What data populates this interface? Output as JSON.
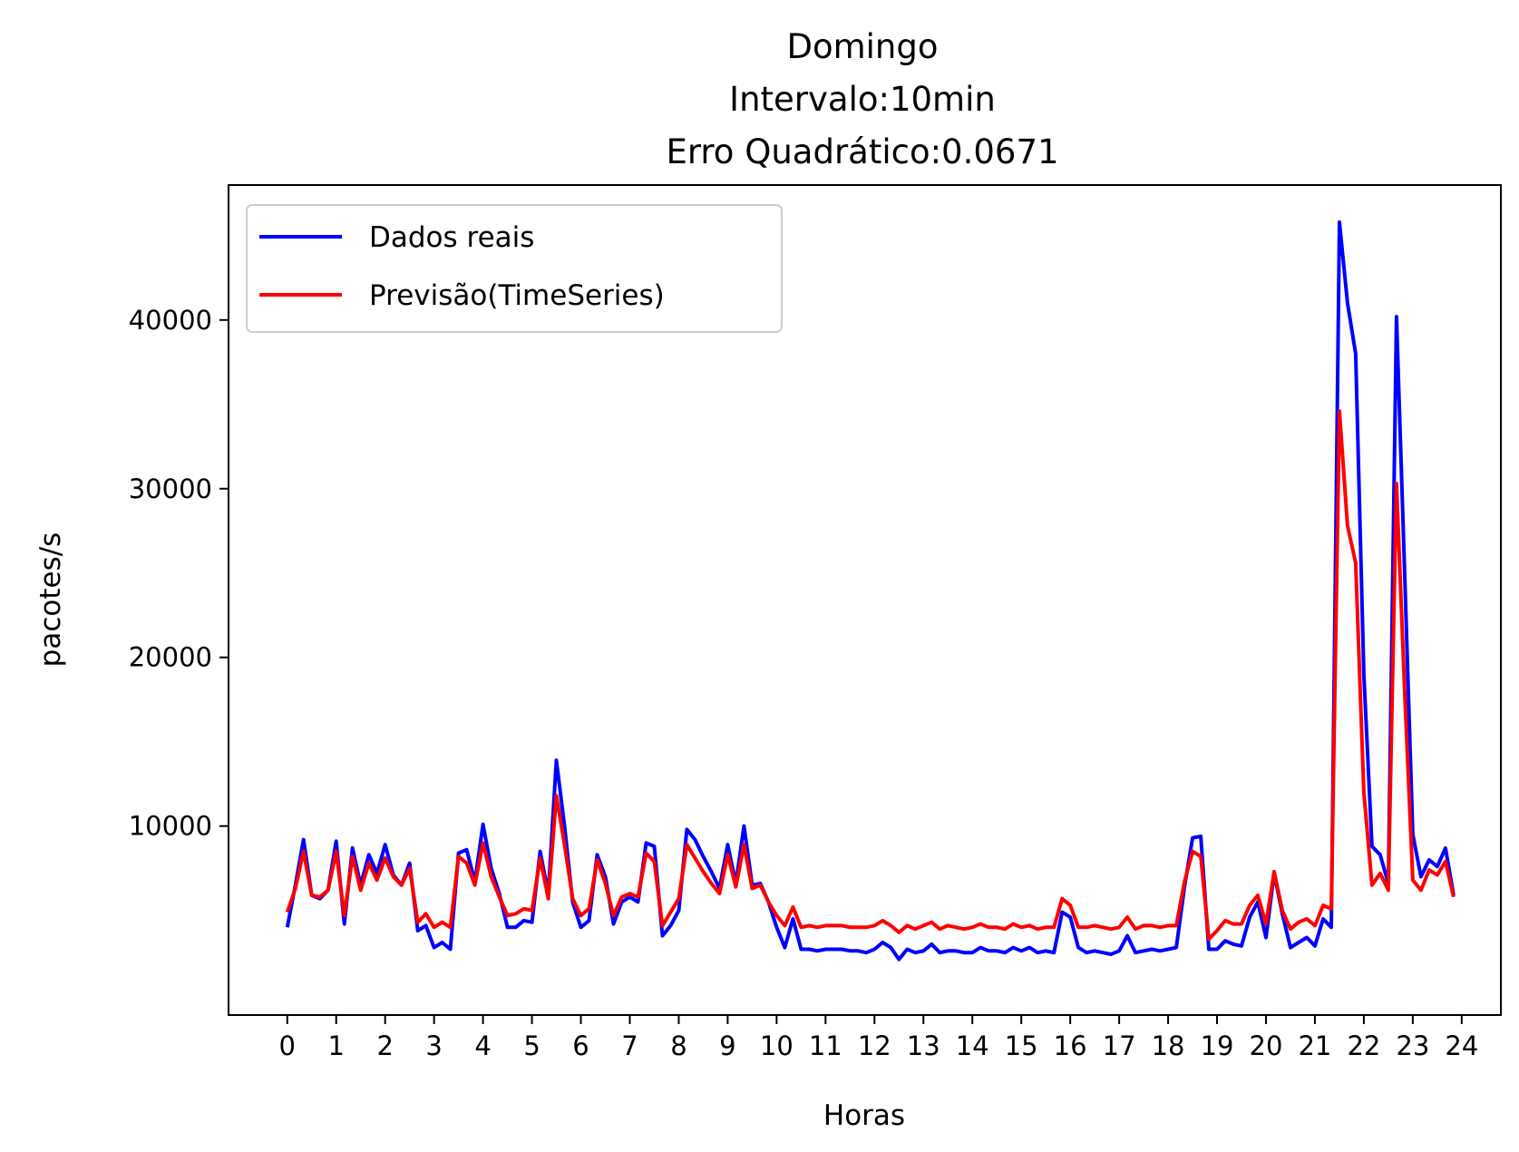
{
  "chart_data": {
    "type": "line",
    "title_lines": [
      "Domingo",
      "Intervalo:10min",
      "Erro Quadrático:0.0671"
    ],
    "xlabel": "Horas",
    "ylabel": "pacotes/s",
    "xlim": [
      -1.2,
      24.8
    ],
    "ylim": [
      -1200,
      48000
    ],
    "x_ticks": [
      0,
      1,
      2,
      3,
      4,
      5,
      6,
      7,
      8,
      9,
      10,
      11,
      12,
      13,
      14,
      15,
      16,
      17,
      18,
      19,
      20,
      21,
      22,
      23,
      24
    ],
    "x_tick_labels": [
      "0",
      "1",
      "2",
      "3",
      "4",
      "5",
      "6",
      "7",
      "8",
      "9",
      "10",
      "11",
      "12",
      "13",
      "14",
      "15",
      "16",
      "17",
      "18",
      "19",
      "20",
      "21",
      "22",
      "23",
      "24"
    ],
    "y_ticks": [
      10000,
      20000,
      30000,
      40000
    ],
    "y_tick_labels": [
      "10000",
      "20000",
      "30000",
      "40000"
    ],
    "grid": false,
    "legend_position": "top-left",
    "x_step_hours": 0.16667,
    "series": [
      {
        "name": "Dados reais",
        "color": "#0000ff",
        "values": [
          4000,
          6500,
          9200,
          5900,
          5700,
          6200,
          9100,
          4200,
          8700,
          6500,
          8300,
          7200,
          8900,
          7100,
          6500,
          7800,
          3800,
          4100,
          2800,
          3100,
          2700,
          8400,
          8600,
          6700,
          10100,
          7500,
          6000,
          4000,
          4000,
          4400,
          4300,
          8500,
          6000,
          13900,
          10000,
          5500,
          4000,
          4400,
          8300,
          7000,
          4200,
          5500,
          5800,
          5500,
          9000,
          8800,
          3500,
          4100,
          5000,
          9800,
          9200,
          8200,
          7300,
          6300,
          8900,
          6600,
          10000,
          6500,
          6600,
          5500,
          4000,
          2800,
          4500,
          2700,
          2700,
          2600,
          2700,
          2700,
          2700,
          2600,
          2600,
          2500,
          2700,
          3100,
          2800,
          2100,
          2700,
          2500,
          2600,
          3000,
          2500,
          2600,
          2600,
          2500,
          2500,
          2800,
          2600,
          2600,
          2500,
          2800,
          2600,
          2800,
          2500,
          2600,
          2500,
          4900,
          4600,
          2800,
          2500,
          2600,
          2500,
          2400,
          2600,
          3500,
          2500,
          2600,
          2700,
          2600,
          2700,
          2800,
          6400,
          9300,
          9400,
          2700,
          2700,
          3200,
          3000,
          2900,
          4600,
          5500,
          3400,
          7200,
          4800,
          2800,
          3100,
          3400,
          2900,
          4500,
          4000,
          45800,
          41000,
          38000,
          19000,
          8800,
          8300,
          6600,
          40200,
          25000,
          9500,
          7000,
          8000,
          7600,
          8700,
          5900
        ],
        "x_start": 0
      },
      {
        "name": "Previsão(TimeSeries)",
        "color": "#ff0000",
        "values": [
          4900,
          6300,
          8500,
          5900,
          5800,
          6200,
          8500,
          4700,
          8200,
          6200,
          7800,
          6800,
          8100,
          7000,
          6500,
          7500,
          4300,
          4800,
          4000,
          4300,
          4000,
          8200,
          7800,
          6500,
          9000,
          7000,
          5800,
          4700,
          4800,
          5100,
          5000,
          8100,
          5700,
          11800,
          8900,
          5700,
          4700,
          5100,
          8000,
          6600,
          4700,
          5800,
          6000,
          5800,
          8400,
          7900,
          4100,
          4900,
          5700,
          8900,
          8100,
          7300,
          6600,
          6000,
          8300,
          6400,
          8900,
          6300,
          6500,
          5500,
          4700,
          4100,
          5200,
          4000,
          4100,
          4000,
          4100,
          4100,
          4100,
          4000,
          4000,
          4000,
          4100,
          4400,
          4100,
          3700,
          4100,
          3900,
          4100,
          4300,
          3900,
          4100,
          4000,
          3900,
          4000,
          4200,
          4000,
          4000,
          3900,
          4200,
          4000,
          4100,
          3900,
          4000,
          4000,
          5700,
          5300,
          4000,
          4000,
          4100,
          4000,
          3900,
          4000,
          4600,
          3900,
          4100,
          4100,
          4000,
          4100,
          4100,
          6700,
          8500,
          8200,
          3300,
          3800,
          4400,
          4200,
          4200,
          5300,
          5900,
          4200,
          7300,
          5000,
          3900,
          4300,
          4500,
          4100,
          5300,
          5100,
          34600,
          27800,
          25600,
          12000,
          6500,
          7200,
          6200,
          30300,
          18000,
          6800,
          6200,
          7400,
          7100,
          7900,
          5800
        ],
        "x_start": 0
      }
    ]
  }
}
